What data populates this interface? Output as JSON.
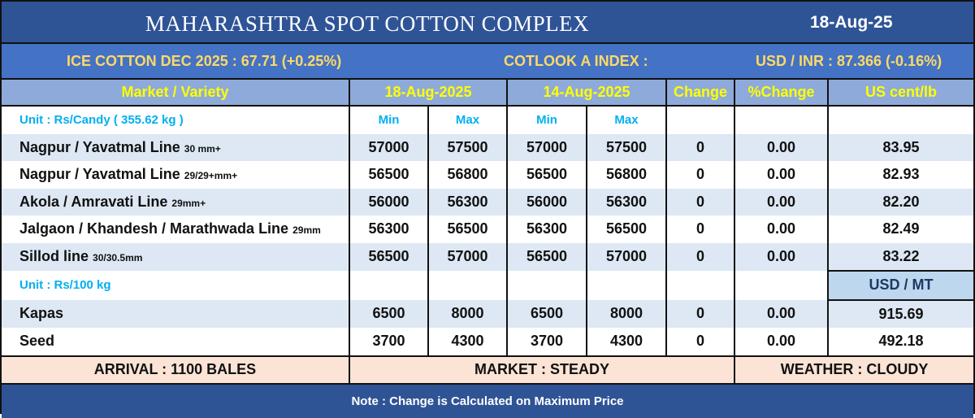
{
  "title": "MAHARASHTRA SPOT COTTON COMPLEX",
  "date": "18-Aug-25",
  "ticker": {
    "ice_cotton": "ICE COTTON DEC 2025 : 67.71 (+0.25%)",
    "cotlook": "COTLOOK A INDEX :",
    "usd_inr": "USD / INR : 87.366 (-0.16%)"
  },
  "headers": [
    "Market / Variety",
    "18-Aug-2025",
    "14-Aug-2025",
    "Change",
    "%Change",
    "US cent/lb"
  ],
  "subheaders": {
    "min": "Min",
    "max": "Max"
  },
  "unit_candy": "Unit : Rs/Candy ( 355.62 kg )",
  "unit_100kg": "Unit : Rs/100 kg",
  "usd_mt_label": "USD / MT",
  "cotton_rows": [
    {
      "name": "Nagpur / Yavatmal Line",
      "spec": "30 mm+",
      "min1": "57000",
      "max1": "57500",
      "min2": "57000",
      "max2": "57500",
      "change": "0",
      "pct": "0.00",
      "usd": "83.95"
    },
    {
      "name": "Nagpur / Yavatmal Line",
      "spec": "29/29+mm+",
      "min1": "56500",
      "max1": "56800",
      "min2": "56500",
      "max2": "56800",
      "change": "0",
      "pct": "0.00",
      "usd": "82.93"
    },
    {
      "name": "Akola / Amravati Line",
      "spec": "29mm+",
      "min1": "56000",
      "max1": "56300",
      "min2": "56000",
      "max2": "56300",
      "change": "0",
      "pct": "0.00",
      "usd": "82.20"
    },
    {
      "name": "Jalgaon / Khandesh / Marathwada Line",
      "spec": "29mm",
      "min1": "56300",
      "max1": "56500",
      "min2": "56300",
      "max2": "56500",
      "change": "0",
      "pct": "0.00",
      "usd": "82.49"
    },
    {
      "name": "Sillod line",
      "spec": "30/30.5mm",
      "min1": "56500",
      "max1": "57000",
      "min2": "56500",
      "max2": "57000",
      "change": "0",
      "pct": "0.00",
      "usd": "83.22"
    }
  ],
  "other_rows": [
    {
      "name": "Kapas",
      "min1": "6500",
      "max1": "8000",
      "min2": "6500",
      "max2": "8000",
      "change": "0",
      "pct": "0.00",
      "usd": "915.69"
    },
    {
      "name": "Seed",
      "min1": "3700",
      "max1": "4300",
      "min2": "3700",
      "max2": "4300",
      "change": "0",
      "pct": "0.00",
      "usd": "492.18"
    }
  ],
  "footer": {
    "arrival": "ARRIVAL : 1100 BALES",
    "market": "MARKET : STEADY",
    "weather": "WEATHER : CLOUDY",
    "note": "Note : Change is Calculated on Maximum Price"
  }
}
